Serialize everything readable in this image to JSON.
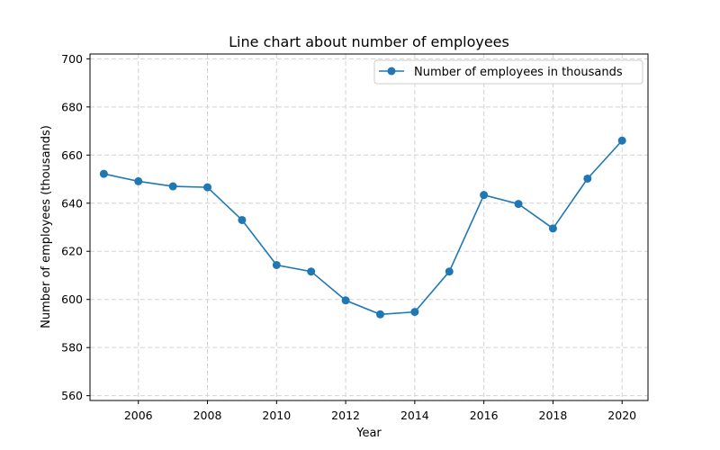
{
  "chart_data": {
    "type": "line",
    "title": "Line chart about number of employees",
    "xlabel": "Year",
    "ylabel": "Number of employees (thousands)",
    "xlim": [
      2004.6,
      2020.75
    ],
    "ylim": [
      558,
      702
    ],
    "x_ticks": [
      2006,
      2008,
      2010,
      2012,
      2014,
      2016,
      2018,
      2020
    ],
    "y_ticks": [
      560,
      580,
      600,
      620,
      640,
      660,
      680,
      700
    ],
    "grid": true,
    "legend_position": "top-right",
    "colors": {
      "series": "#1f77b4"
    },
    "x": [
      2005,
      2006,
      2007,
      2008,
      2009,
      2010,
      2011,
      2012,
      2013,
      2014,
      2015,
      2016,
      2017,
      2018,
      2019,
      2020
    ],
    "series": [
      {
        "name": "Number of employees in thousands",
        "values": [
          652.2,
          649.1,
          647.0,
          646.6,
          633.0,
          614.3,
          611.6,
          599.6,
          593.8,
          594.8,
          611.6,
          643.4,
          639.7,
          629.5,
          650.2,
          666.0
        ]
      }
    ]
  }
}
